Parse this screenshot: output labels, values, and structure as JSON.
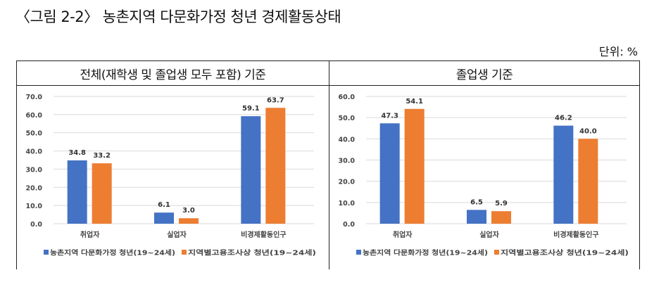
{
  "title": "〈그림 2-2〉 농촌지역 다문화가정 청년 경제활동상태",
  "unit": "단위: %",
  "colors": {
    "series1": "#4472C4",
    "series2": "#ED7D31",
    "grid": "#d9d9d9"
  },
  "chart_data": [
    {
      "type": "bar",
      "title": "전체(재학생 및 졸업생 모두 포함) 기준",
      "categories": [
        "취업자",
        "실업자",
        "비경제활동인구"
      ],
      "series": [
        {
          "name": "농촌지역 다문화가정 청년(19~24세)",
          "values": [
            34.8,
            6.1,
            59.1
          ]
        },
        {
          "name": "지역별고용조사상 청년(19~24세)",
          "values": [
            33.2,
            3.0,
            63.7
          ]
        }
      ],
      "ylim": [
        0,
        70
      ],
      "yticks": [
        "0.0",
        "10.0",
        "20.0",
        "30.0",
        "40.0",
        "50.0",
        "60.0",
        "70.0"
      ],
      "grid": true,
      "legend": "bottom"
    },
    {
      "type": "bar",
      "title": "졸업생 기준",
      "categories": [
        "취업자",
        "실업자",
        "비경제활동인구"
      ],
      "series": [
        {
          "name": "농촌지역 다문화가정 청년(19~24세)",
          "values": [
            47.3,
            6.5,
            46.2
          ]
        },
        {
          "name": "지역별고용조사상 청년(19~24세)",
          "values": [
            54.1,
            5.9,
            40.0
          ]
        }
      ],
      "ylim": [
        0,
        60
      ],
      "yticks": [
        "0.0",
        "10.0",
        "20.0",
        "30.0",
        "40.0",
        "50.0",
        "60.0"
      ],
      "grid": true,
      "legend": "bottom"
    }
  ]
}
